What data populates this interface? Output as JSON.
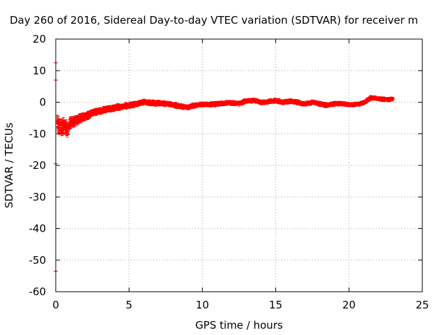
{
  "chart_data": {
    "type": "scatter",
    "title": "Day 260 of 2016, Sidereal Day-to-day VTEC variation (SDTVAR) for receiver m",
    "xlabel": "GPS time / hours",
    "ylabel": "SDTVAR / TECUs",
    "xlim": [
      0,
      25
    ],
    "ylim": [
      -60,
      20
    ],
    "x_ticks": [
      0,
      5,
      10,
      15,
      20,
      25
    ],
    "y_ticks": [
      -60,
      -50,
      -40,
      -30,
      -20,
      -10,
      0,
      10,
      20
    ],
    "grid": true,
    "colors": {
      "series": "#ff0000",
      "grid": "#a0a0a0",
      "axis": "#000000"
    },
    "series": [
      {
        "band_center": [
          [
            0.1,
            -6.5
          ],
          [
            0.3,
            -8.0
          ],
          [
            0.5,
            -7.5
          ],
          [
            0.8,
            -8.5
          ],
          [
            1.0,
            -6.5
          ],
          [
            1.3,
            -6.0
          ],
          [
            1.6,
            -5.2
          ],
          [
            2.0,
            -4.5
          ],
          [
            2.5,
            -3.5
          ],
          [
            3.0,
            -2.8
          ],
          [
            3.5,
            -2.2
          ],
          [
            4.0,
            -1.8
          ],
          [
            4.5,
            -1.3
          ],
          [
            5.0,
            -1.0
          ],
          [
            5.5,
            -0.5
          ],
          [
            6.0,
            0.0
          ],
          [
            6.5,
            -0.2
          ],
          [
            7.0,
            -0.3
          ],
          [
            7.5,
            -0.5
          ],
          [
            8.0,
            -0.8
          ],
          [
            8.5,
            -1.3
          ],
          [
            9.0,
            -1.6
          ],
          [
            9.5,
            -1.0
          ],
          [
            10.0,
            -0.6
          ],
          [
            10.5,
            -0.8
          ],
          [
            11.0,
            -0.5
          ],
          [
            11.5,
            -0.3
          ],
          [
            12.0,
            -0.2
          ],
          [
            12.5,
            -0.4
          ],
          [
            13.0,
            0.5
          ],
          [
            13.5,
            0.5
          ],
          [
            14.0,
            0.0
          ],
          [
            14.5,
            0.2
          ],
          [
            15.0,
            0.5
          ],
          [
            15.5,
            0.0
          ],
          [
            16.0,
            0.4
          ],
          [
            16.5,
            0.0
          ],
          [
            17.0,
            -0.6
          ],
          [
            17.5,
            0.0
          ],
          [
            18.0,
            -0.5
          ],
          [
            18.5,
            -1.0
          ],
          [
            19.0,
            -0.5
          ],
          [
            19.5,
            -0.4
          ],
          [
            20.0,
            -0.8
          ],
          [
            20.5,
            -0.7
          ],
          [
            21.0,
            -0.2
          ],
          [
            21.5,
            1.5
          ],
          [
            22.0,
            1.2
          ],
          [
            22.5,
            0.8
          ],
          [
            23.0,
            1.0
          ]
        ],
        "band_half_width": [
          [
            0.1,
            3.5
          ],
          [
            0.6,
            3.0
          ],
          [
            1.0,
            2.2
          ],
          [
            2.0,
            1.5
          ],
          [
            4.0,
            1.2
          ],
          [
            8.0,
            1.0
          ],
          [
            12.0,
            0.9
          ],
          [
            18.0,
            0.9
          ],
          [
            23.0,
            0.8
          ]
        ]
      }
    ],
    "outlier_ticks": [
      [
        0.0,
        12.5
      ],
      [
        0.0,
        7.0
      ],
      [
        0.0,
        -19.5
      ],
      [
        0.0,
        -53.5
      ]
    ]
  }
}
